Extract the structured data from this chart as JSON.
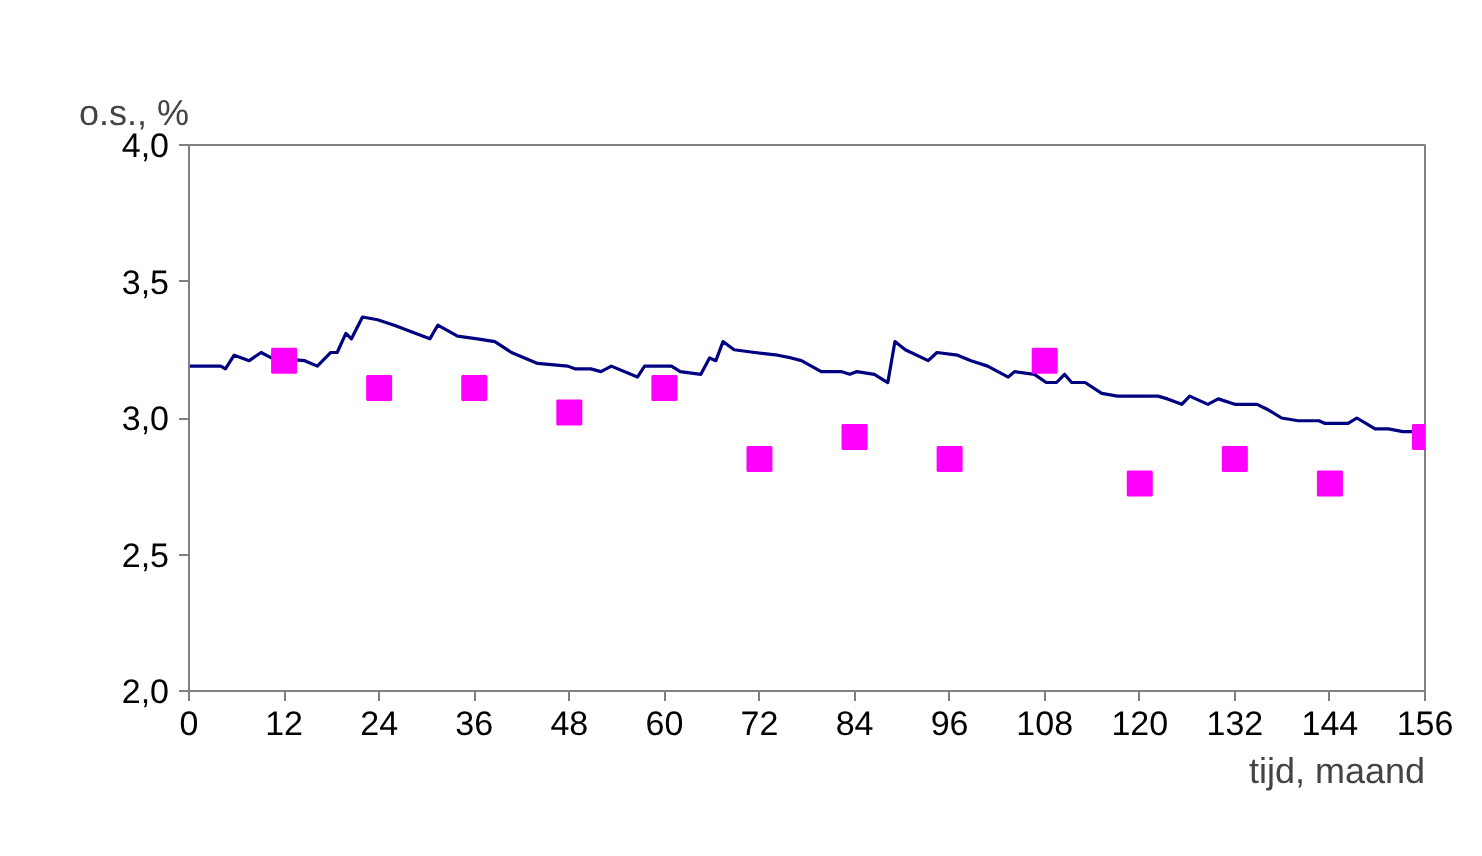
{
  "chart_data": {
    "type": "line",
    "xlabel": "tijd, maand",
    "ylabel": "o.s., %",
    "xlim": [
      0,
      156
    ],
    "xticks": [
      0,
      12,
      24,
      36,
      48,
      60,
      72,
      84,
      96,
      108,
      120,
      132,
      144,
      156
    ],
    "ylim": [
      2.0,
      4.0
    ],
    "yticks": [
      {
        "value": 2.0,
        "label": "2,0"
      },
      {
        "value": 2.5,
        "label": "2,5"
      },
      {
        "value": 3.0,
        "label": "3,0"
      },
      {
        "value": 3.5,
        "label": "3,5"
      },
      {
        "value": 4.0,
        "label": "4,0"
      }
    ],
    "grid": false,
    "series": [
      {
        "color": "#000080",
        "marker": "none",
        "line_style": "solid",
        "x": [
          0,
          4,
          4.6,
          5.7,
          7.6,
          9.1,
          10.4,
          14.6,
          16.2,
          17.9,
          18.7,
          19.8,
          20.5,
          21.9,
          23.8,
          25.9,
          30.4,
          31.4,
          33.9,
          36.4,
          38.6,
          40.7,
          44,
          47.8,
          48.7,
          50.7,
          52,
          53.3,
          56.6,
          57.5,
          60.9,
          62,
          64.6,
          65.7,
          66.5,
          67.4,
          68.8,
          71.4,
          74.3,
          76,
          77.3,
          79.8,
          82.3,
          83.4,
          84.3,
          86.5,
          88.2,
          89.1,
          90.4,
          93.3,
          94.4,
          97,
          98.7,
          100.8,
          103.4,
          104.2,
          106.7,
          108.2,
          109.5,
          110.5,
          111.4,
          113.1,
          115.2,
          117.2,
          122.3,
          123.5,
          125.3,
          126.3,
          128.6,
          129.9,
          132,
          134.8,
          136.2,
          137.9,
          140,
          142.6,
          143.4,
          146.3,
          147.4,
          149.7,
          151.4,
          153.2,
          154.9
        ],
        "values": [
          3.19,
          3.19,
          3.18,
          3.23,
          3.21,
          3.24,
          3.22,
          3.21,
          3.19,
          3.24,
          3.24,
          3.31,
          3.29,
          3.37,
          3.36,
          3.34,
          3.29,
          3.34,
          3.3,
          3.29,
          3.28,
          3.24,
          3.2,
          3.19,
          3.18,
          3.18,
          3.17,
          3.19,
          3.15,
          3.19,
          3.19,
          3.17,
          3.16,
          3.22,
          3.21,
          3.28,
          3.25,
          3.24,
          3.23,
          3.22,
          3.21,
          3.17,
          3.17,
          3.16,
          3.17,
          3.16,
          3.13,
          3.28,
          3.25,
          3.21,
          3.24,
          3.23,
          3.21,
          3.19,
          3.15,
          3.17,
          3.16,
          3.13,
          3.13,
          3.16,
          3.13,
          3.13,
          3.09,
          3.08,
          3.08,
          3.07,
          3.05,
          3.08,
          3.05,
          3.07,
          3.05,
          3.05,
          3.03,
          3.0,
          2.99,
          2.99,
          2.98,
          2.98,
          3.0,
          2.96,
          2.96,
          2.95,
          2.95
        ]
      },
      {
        "type": "scatter",
        "color": "#ff00ff",
        "marker": "square",
        "x": [
          12,
          24,
          36,
          48,
          60,
          72,
          84,
          96,
          108,
          120,
          132,
          144,
          156
        ],
        "values": [
          3.21,
          3.11,
          3.11,
          3.02,
          3.11,
          2.85,
          2.93,
          2.85,
          3.21,
          2.76,
          2.85,
          2.76,
          2.93
        ]
      }
    ]
  }
}
